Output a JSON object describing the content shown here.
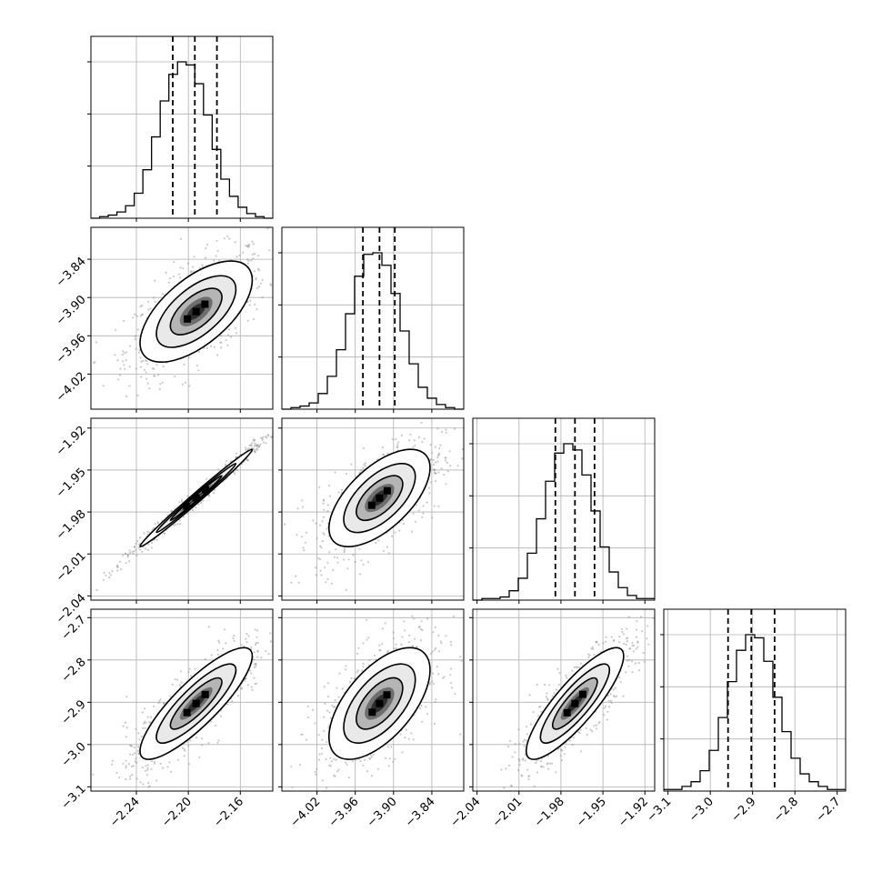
{
  "chart_data": {
    "type": "corner",
    "grid": true,
    "parameters": [
      {
        "range": [
          -2.275,
          -2.135
        ],
        "ticks": [
          -2.24,
          -2.2,
          -2.16
        ],
        "tick_labels": [
          "−2.24",
          "−2.20",
          "−2.16"
        ],
        "quantiles": [
          -2.212,
          -2.195,
          -2.178
        ]
      },
      {
        "range": [
          -4.075,
          -3.79
        ],
        "ticks": [
          -4.02,
          -3.96,
          -3.9,
          -3.84
        ],
        "tick_labels": [
          "−4.02",
          "−3.96",
          "−3.90",
          "−3.84"
        ],
        "quantiles": [
          -3.948,
          -3.922,
          -3.898
        ]
      },
      {
        "range": [
          -2.043,
          -1.913
        ],
        "ticks": [
          -2.04,
          -2.01,
          -1.98,
          -1.95,
          -1.92
        ],
        "tick_labels": [
          "−2.04",
          "−2.01",
          "−1.98",
          "−1.95",
          "−1.92"
        ],
        "quantiles": [
          -1.984,
          -1.97,
          -1.956
        ]
      },
      {
        "range": [
          -3.11,
          -2.68
        ],
        "ticks": [
          -3.1,
          -3.0,
          -2.9,
          -2.8,
          -2.7
        ],
        "tick_labels": [
          "−3.1",
          "−3.0",
          "−2.9",
          "−2.8",
          "−2.7"
        ],
        "quantiles": [
          -2.958,
          -2.903,
          -2.848
        ]
      }
    ],
    "marginals": [
      {
        "param": 0,
        "counts": [
          0,
          1,
          2,
          4,
          8,
          16,
          31,
          52,
          75,
          92,
          100,
          98,
          86,
          66,
          44,
          25,
          14,
          7,
          3,
          1,
          0
        ]
      },
      {
        "param": 1,
        "counts": [
          0,
          1,
          2,
          4,
          10,
          21,
          38,
          61,
          85,
          99,
          100,
          92,
          74,
          50,
          29,
          14,
          7,
          3,
          1,
          0
        ]
      },
      {
        "param": 2,
        "counts": [
          0,
          1,
          1,
          2,
          6,
          14,
          30,
          52,
          76,
          94,
          100,
          96,
          80,
          57,
          34,
          18,
          8,
          3,
          1,
          1
        ]
      },
      {
        "param": 3,
        "counts": [
          1,
          1,
          3,
          6,
          13,
          26,
          47,
          70,
          90,
          100,
          98,
          83,
          60,
          38,
          21,
          11,
          6,
          3,
          1,
          1
        ]
      }
    ],
    "pairs": [
      {
        "x": 0,
        "y": 1,
        "center": [
          -2.194,
          -3.922
        ],
        "sd": [
          0.018,
          0.033
        ],
        "rho": 0.62
      },
      {
        "x": 0,
        "y": 2,
        "center": [
          -2.194,
          -1.97
        ],
        "sd": [
          0.018,
          0.0145
        ],
        "rho": 0.992
      },
      {
        "x": 1,
        "y": 2,
        "center": [
          -3.922,
          -1.97
        ],
        "sd": [
          0.033,
          0.0145
        ],
        "rho": 0.62
      },
      {
        "x": 0,
        "y": 3,
        "center": [
          -2.194,
          -2.903
        ],
        "sd": [
          0.018,
          0.055
        ],
        "rho": 0.85
      },
      {
        "x": 1,
        "y": 3,
        "center": [
          -3.922,
          -2.903
        ],
        "sd": [
          0.033,
          0.055
        ],
        "rho": 0.6
      },
      {
        "x": 2,
        "y": 3,
        "center": [
          -1.97,
          -2.903
        ],
        "sd": [
          0.0145,
          0.055
        ],
        "rho": 0.85
      }
    ]
  }
}
